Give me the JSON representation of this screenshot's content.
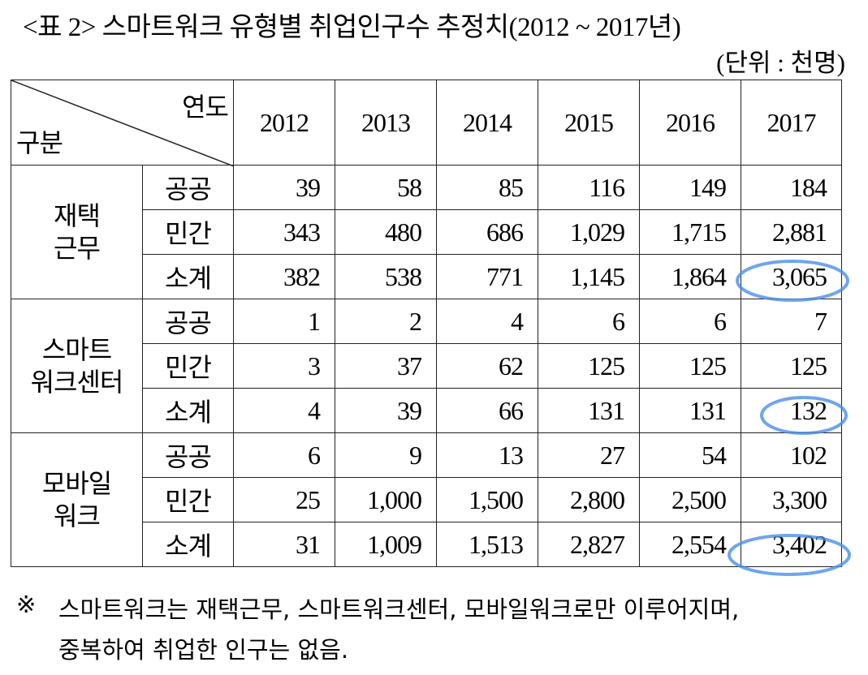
{
  "title": "<표 2> 스마트워크 유형별 취업인구수 추정치(2012 ~ 2017년)",
  "unit": "(단위 : 천명)",
  "table": {
    "corner": {
      "top": "연도",
      "bottom": "구분"
    },
    "years": [
      "2012",
      "2013",
      "2014",
      "2015",
      "2016",
      "2017"
    ],
    "groups": [
      {
        "label_lines": [
          "재택",
          "근무"
        ],
        "rows": [
          {
            "label": "공공",
            "values": [
              "39",
              "58",
              "85",
              "116",
              "149",
              "184"
            ]
          },
          {
            "label": "민간",
            "values": [
              "343",
              "480",
              "686",
              "1,029",
              "1,715",
              "2,881"
            ]
          },
          {
            "label": "소계",
            "values": [
              "382",
              "538",
              "771",
              "1,145",
              "1,864",
              "3,065"
            ]
          }
        ]
      },
      {
        "label_lines": [
          "스마트",
          "워크센터"
        ],
        "rows": [
          {
            "label": "공공",
            "values": [
              "1",
              "2",
              "4",
              "6",
              "6",
              "7"
            ]
          },
          {
            "label": "민간",
            "values": [
              "3",
              "37",
              "62",
              "125",
              "125",
              "125"
            ]
          },
          {
            "label": "소계",
            "values": [
              "4",
              "39",
              "66",
              "131",
              "131",
              "132"
            ]
          }
        ]
      },
      {
        "label_lines": [
          "모바일",
          "워크"
        ],
        "rows": [
          {
            "label": "공공",
            "values": [
              "6",
              "9",
              "13",
              "27",
              "54",
              "102"
            ]
          },
          {
            "label": "민간",
            "values": [
              "25",
              "1,000",
              "1,500",
              "2,800",
              "2,500",
              "3,300"
            ]
          },
          {
            "label": "소계",
            "values": [
              "31",
              "1,009",
              "1,513",
              "2,827",
              "2,554",
              "3,402"
            ]
          }
        ]
      }
    ]
  },
  "note": {
    "symbol": "※",
    "lines": [
      "스마트워크는 재택근무, 스마트워크센터, 모바일워크로만 이루어지며,",
      "중복하여 취업한 인구는 없음."
    ]
  }
}
